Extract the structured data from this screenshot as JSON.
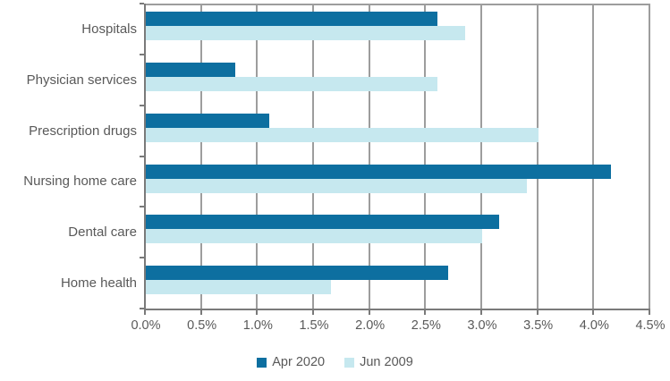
{
  "chart_data": {
    "type": "bar",
    "orientation": "horizontal",
    "title": "",
    "xlabel": "",
    "ylabel": "",
    "categories": [
      "Hospitals",
      "Physician services",
      "Prescription drugs",
      "Nursing home care",
      "Dental care",
      "Home health"
    ],
    "series": [
      {
        "name": "Apr 2020",
        "color": "#0d6fa0",
        "values": [
          2.6,
          0.8,
          1.1,
          4.15,
          3.15,
          2.7
        ]
      },
      {
        "name": "Jun 2009",
        "color": "#c6e8ef",
        "values": [
          2.85,
          2.6,
          3.5,
          3.4,
          3.0,
          1.65
        ]
      }
    ],
    "x_axis": {
      "min": 0,
      "max": 4.5,
      "step": 0.5,
      "tick_labels": [
        "0.0%",
        "0.5%",
        "1.0%",
        "1.5%",
        "2.0%",
        "2.5%",
        "3.0%",
        "3.5%",
        "4.0%",
        "4.5%"
      ]
    },
    "grid": true,
    "legend_position": "bottom"
  },
  "colors": {
    "axis": "#7a7a7a",
    "gridline": "#9d9d9d",
    "text": "#595959",
    "background": "#ffffff"
  }
}
